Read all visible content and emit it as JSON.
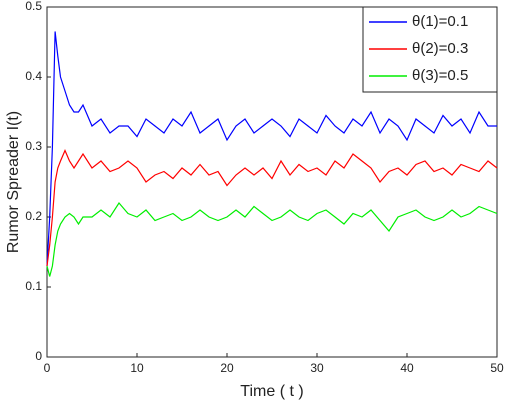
{
  "chart_data": {
    "type": "line",
    "xlabel": "Time ( t )",
    "ylabel": "Rumor Spreader I(t)",
    "x": [
      0,
      0.3,
      0.6,
      0.9,
      1.2,
      1.5,
      2,
      2.5,
      3,
      3.5,
      4,
      5,
      6,
      7,
      8,
      9,
      10,
      11,
      12,
      13,
      14,
      15,
      16,
      17,
      18,
      19,
      20,
      21,
      22,
      23,
      24,
      25,
      26,
      27,
      28,
      29,
      30,
      31,
      32,
      33,
      34,
      35,
      36,
      37,
      38,
      39,
      40,
      41,
      42,
      43,
      44,
      45,
      46,
      47,
      48,
      49,
      50
    ],
    "series": [
      {
        "name": "θ(1)=0.1",
        "color": "#0000ff",
        "values": [
          0.13,
          0.2,
          0.3,
          0.465,
          0.43,
          0.4,
          0.38,
          0.36,
          0.35,
          0.35,
          0.36,
          0.33,
          0.34,
          0.32,
          0.33,
          0.33,
          0.315,
          0.34,
          0.33,
          0.32,
          0.34,
          0.33,
          0.35,
          0.32,
          0.33,
          0.34,
          0.31,
          0.33,
          0.34,
          0.32,
          0.33,
          0.34,
          0.33,
          0.315,
          0.34,
          0.33,
          0.32,
          0.345,
          0.33,
          0.32,
          0.34,
          0.33,
          0.35,
          0.32,
          0.34,
          0.33,
          0.31,
          0.34,
          0.33,
          0.32,
          0.345,
          0.33,
          0.34,
          0.32,
          0.35,
          0.33,
          0.33
        ]
      },
      {
        "name": "θ(2)=0.3",
        "color": "#ff0000",
        "values": [
          0.13,
          0.16,
          0.2,
          0.25,
          0.27,
          0.28,
          0.295,
          0.28,
          0.27,
          0.28,
          0.29,
          0.27,
          0.28,
          0.265,
          0.27,
          0.28,
          0.27,
          0.25,
          0.26,
          0.265,
          0.255,
          0.27,
          0.26,
          0.275,
          0.26,
          0.265,
          0.245,
          0.26,
          0.27,
          0.26,
          0.27,
          0.255,
          0.28,
          0.26,
          0.275,
          0.265,
          0.27,
          0.26,
          0.28,
          0.27,
          0.29,
          0.28,
          0.27,
          0.25,
          0.265,
          0.27,
          0.26,
          0.275,
          0.28,
          0.265,
          0.27,
          0.26,
          0.275,
          0.27,
          0.265,
          0.28,
          0.27
        ]
      },
      {
        "name": "θ(3)=0.5",
        "color": "#00ee00",
        "values": [
          0.13,
          0.115,
          0.13,
          0.16,
          0.18,
          0.19,
          0.2,
          0.205,
          0.2,
          0.19,
          0.2,
          0.2,
          0.21,
          0.2,
          0.22,
          0.205,
          0.2,
          0.21,
          0.195,
          0.2,
          0.205,
          0.195,
          0.2,
          0.21,
          0.2,
          0.195,
          0.2,
          0.21,
          0.2,
          0.215,
          0.205,
          0.195,
          0.2,
          0.21,
          0.2,
          0.195,
          0.205,
          0.21,
          0.2,
          0.19,
          0.205,
          0.2,
          0.21,
          0.195,
          0.18,
          0.2,
          0.205,
          0.21,
          0.2,
          0.195,
          0.2,
          0.21,
          0.2,
          0.205,
          0.215,
          0.21,
          0.205
        ]
      }
    ],
    "xlim": [
      0,
      50
    ],
    "xticks": [
      0,
      10,
      20,
      30,
      40,
      50
    ],
    "ylim": [
      0,
      0.5
    ],
    "yticks": [
      0,
      0.1,
      0.2,
      0.3,
      0.4,
      0.5
    ],
    "legend": "upper right"
  }
}
